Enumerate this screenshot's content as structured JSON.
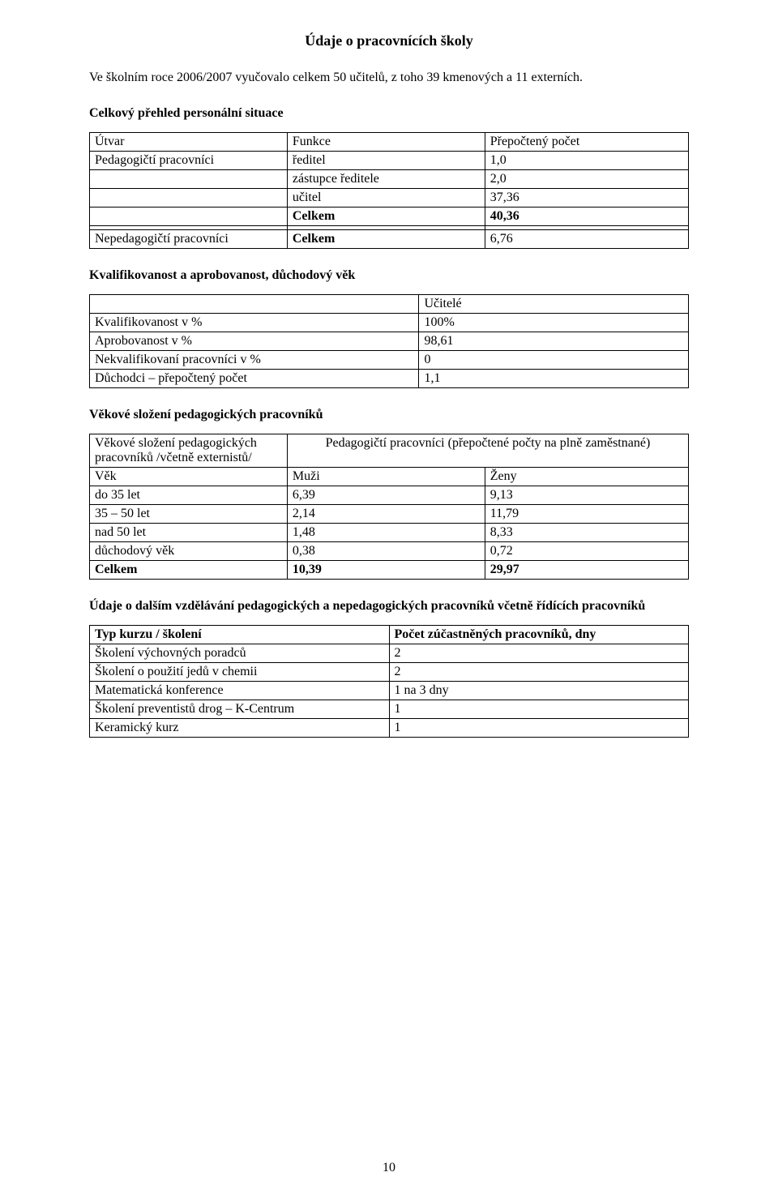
{
  "title": "Údaje o pracovnících školy",
  "intro": "Ve školním roce 2006/2007  vyučovalo celkem 50 učitelů, z toho 39 kmenových a 11 externích.",
  "section1": {
    "heading": "Celkový přehled personální situace",
    "headers": {
      "c1": "Útvar",
      "c2": "Funkce",
      "c3": "Přepočtený počet"
    },
    "rows": [
      {
        "c1": "Pedagogičtí pracovníci",
        "c2": "ředitel",
        "c3": "1,0"
      },
      {
        "c1": "",
        "c2": "zástupce ředitele",
        "c3": "2,0"
      },
      {
        "c1": "",
        "c2": "učitel",
        "c3": "37,36"
      },
      {
        "c1": "",
        "c2": "Celkem",
        "c3": "40,36",
        "bold23": true
      },
      {
        "c1": "",
        "c2": "",
        "c3": ""
      },
      {
        "c1": "Nepedagogičtí pracovníci",
        "c2": "Celkem",
        "c3": "6,76",
        "bold2": true
      }
    ]
  },
  "section2": {
    "heading": "Kvalifikovanost a aprobovanost, důchodový věk",
    "header2": "Učitelé",
    "rows": [
      {
        "label": "Kvalifikovanost v %",
        "value": "100%"
      },
      {
        "label": "Aprobovanost  v %",
        "value": "98,61"
      },
      {
        "label": "Nekvalifikovaní pracovníci v %",
        "value": "0"
      },
      {
        "label": "Důchodci – přepočtený počet",
        "value": "1,1"
      }
    ]
  },
  "section3": {
    "heading": "Věkové složení pedagogických pracovníků",
    "header_left": "Věkové složení pedagogických pracovníků /včetně externistů/",
    "header_right": "Pedagogičtí pracovníci (přepočtené počty na plně zaměstnané)",
    "subheaders": {
      "c1": "Věk",
      "c2": "Muži",
      "c3": "Ženy"
    },
    "rows": [
      {
        "c1": "do 35 let",
        "c2": "6,39",
        "c3": "9,13"
      },
      {
        "c1": "35 – 50 let",
        "c2": "2,14",
        "c3": "11,79"
      },
      {
        "c1": "nad  50 let",
        "c2": "1,48",
        "c3": "8,33"
      },
      {
        "c1": "důchodový věk",
        "c2": "0,38",
        "c3": "0,72"
      },
      {
        "c1": "Celkem",
        "c2": "10,39",
        "c3": "29,97",
        "bold": true
      }
    ]
  },
  "section4": {
    "heading": "Údaje o dalším vzdělávání pedagogických a nepedagogických pracovníků včetně řídících pracovníků",
    "headers": {
      "c1": "Typ kurzu / školení",
      "c2": "Počet zúčastněných pracovníků, dny"
    },
    "rows": [
      {
        "c1": "Školení výchovných poradců",
        "c2": "2"
      },
      {
        "c1": "Školení o použití jedů v chemii",
        "c2": "2"
      },
      {
        "c1": "Matematická konference",
        "c2": "1 na 3 dny"
      },
      {
        "c1": "Školení preventistů drog – K-Centrum",
        "c2": "1"
      },
      {
        "c1": "Keramický kurz",
        "c2": "1"
      }
    ]
  },
  "pageNumber": "10"
}
